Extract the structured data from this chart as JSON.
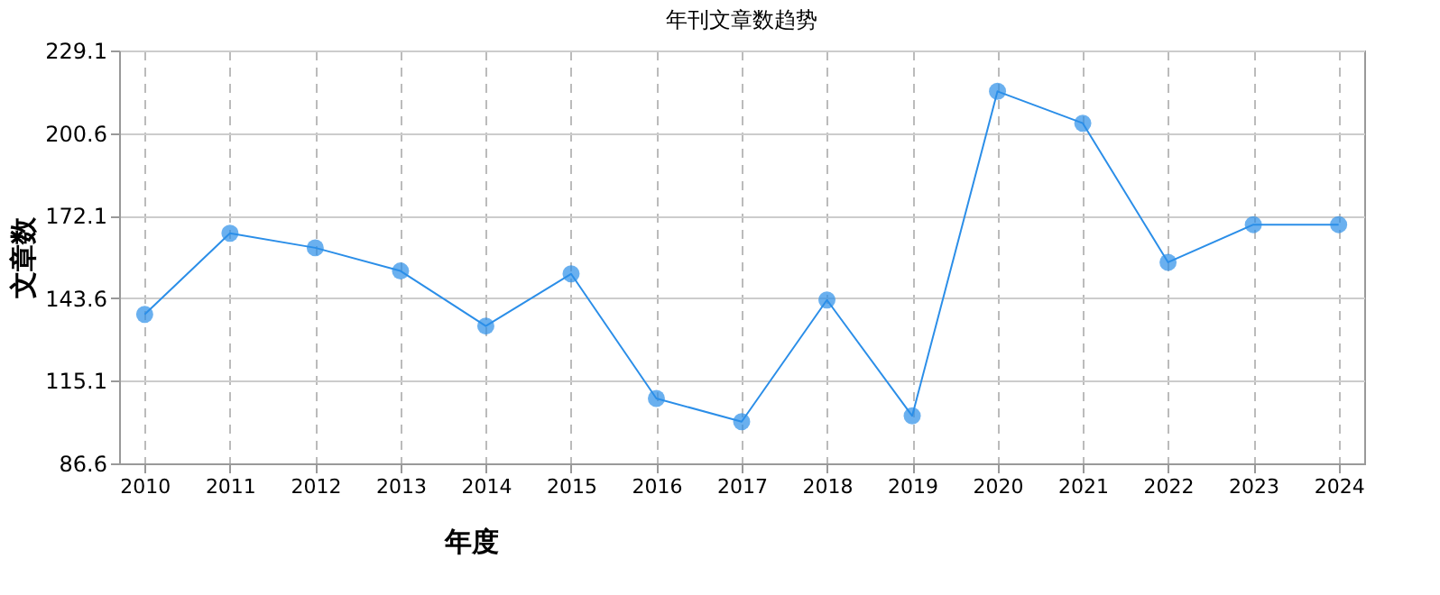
{
  "chart_data": {
    "type": "line",
    "title": "年刊文章数趋势",
    "xlabel": "年度",
    "ylabel": "文章数",
    "categories": [
      "2010",
      "2011",
      "2012",
      "2013",
      "2014",
      "2015",
      "2016",
      "2017",
      "2018",
      "2019",
      "2020",
      "2021",
      "2022",
      "2023",
      "2024"
    ],
    "series": [
      {
        "color": "#2b8ee8",
        "values": [
          138,
          166,
          161,
          153,
          134,
          152,
          109,
          101,
          143,
          103,
          215,
          204,
          156,
          169,
          169
        ]
      }
    ],
    "ylim": [
      86.6,
      229.1
    ],
    "yticks": [
      86.6,
      115.1,
      143.6,
      172.1,
      200.6,
      229.1
    ],
    "grid": true,
    "marker": "circle",
    "line_style": "solid"
  }
}
